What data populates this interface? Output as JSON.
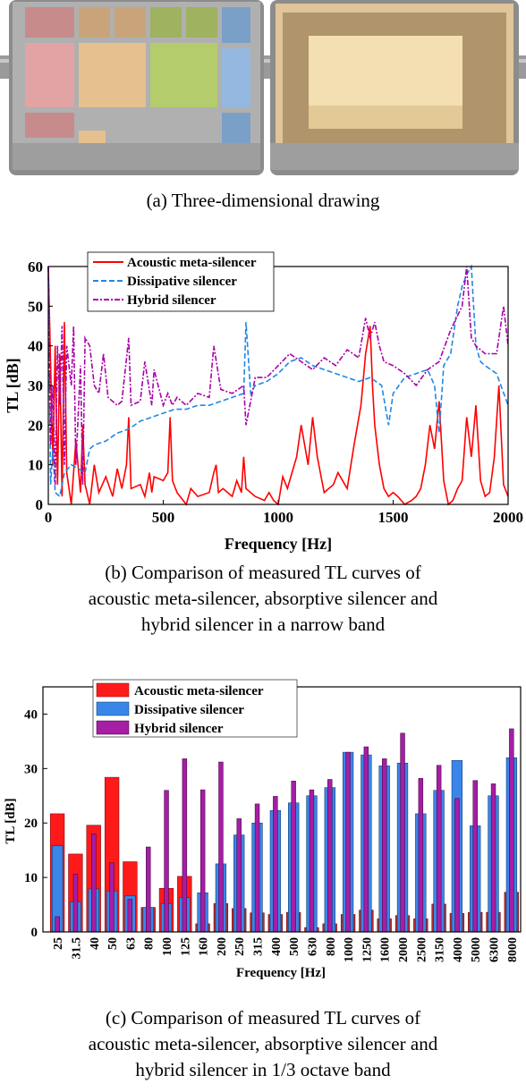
{
  "captions": {
    "a": "(a)  Three-dimensional  drawing",
    "b_lines": [
      "(b)  Comparison  of  measured  TL  curves  of",
      "acoustic  meta-silencer,  absorptive  silencer  and",
      "hybrid  silencer  in  a  narrow  band"
    ],
    "c_lines": [
      "(c)  Comparison  of  measured  TL  curves  of",
      "acoustic  meta-silencer,  absorptive  silencer  and",
      "hybrid  silencer  in  1/3  octave  band"
    ]
  },
  "colors": {
    "meta": "#ff0000",
    "dissipative": "#1e88e5",
    "hybrid": "#aa00aa",
    "bar_meta": "#ff1a1a",
    "bar_diss": "#3a86e8",
    "bar_hybrid": "#a51ea5",
    "bar_meta_low": "#b03030"
  },
  "chart_data": [
    {
      "type": "line",
      "xlabel": "Frequency [Hz]",
      "ylabel": "TL [dB]",
      "xlim": [
        0,
        2000
      ],
      "ylim": [
        0,
        60
      ],
      "xticks": [
        0,
        500,
        1000,
        1500,
        2000
      ],
      "yticks": [
        0,
        10,
        20,
        30,
        40,
        50,
        60
      ],
      "legend_position": "top-center",
      "series": [
        {
          "name": "Acoustic meta-silencer",
          "x": [
            0,
            10,
            20,
            30,
            40,
            50,
            60,
            70,
            80,
            100,
            120,
            140,
            150,
            160,
            180,
            200,
            220,
            250,
            280,
            300,
            320,
            340,
            350,
            360,
            400,
            420,
            440,
            450,
            460,
            500,
            520,
            530,
            540,
            560,
            600,
            620,
            650,
            700,
            720,
            730,
            740,
            760,
            800,
            820,
            840,
            850,
            860,
            900,
            940,
            960,
            980,
            1000,
            1020,
            1040,
            1060,
            1080,
            1100,
            1130,
            1150,
            1170,
            1190,
            1200,
            1240,
            1260,
            1300,
            1330,
            1360,
            1380,
            1400,
            1410,
            1420,
            1440,
            1460,
            1480,
            1500,
            1520,
            1550,
            1580,
            1600,
            1620,
            1640,
            1660,
            1680,
            1700,
            1720,
            1740,
            1760,
            1780,
            1800,
            1820,
            1840,
            1860,
            1880,
            1900,
            1920,
            1940,
            1960,
            1980,
            2000
          ],
          "y": [
            60,
            35,
            10,
            40,
            5,
            38,
            2,
            46,
            8,
            0,
            16,
            3,
            20,
            5,
            0,
            10,
            3,
            7,
            2,
            9,
            4,
            10,
            22,
            4,
            5,
            2,
            8,
            3,
            7,
            6,
            8,
            22,
            6,
            3,
            0,
            4,
            2,
            3,
            8,
            10,
            3,
            4,
            2,
            6,
            3,
            12,
            4,
            2,
            1,
            3,
            1,
            0,
            7,
            4,
            8,
            12,
            20,
            10,
            22,
            12,
            6,
            3,
            5,
            8,
            4,
            15,
            25,
            38,
            45,
            30,
            20,
            10,
            4,
            2,
            3,
            2,
            0,
            1,
            2,
            4,
            10,
            20,
            14,
            26,
            6,
            0,
            1,
            4,
            6,
            22,
            12,
            25,
            6,
            2,
            3,
            12,
            30,
            5,
            2
          ]
        },
        {
          "name": "Dissipative silencer",
          "x": [
            0,
            10,
            20,
            30,
            50,
            70,
            100,
            130,
            160,
            180,
            200,
            250,
            300,
            350,
            400,
            450,
            500,
            550,
            600,
            650,
            700,
            750,
            800,
            850,
            860,
            880,
            900,
            950,
            1000,
            1050,
            1100,
            1150,
            1200,
            1250,
            1300,
            1350,
            1400,
            1450,
            1480,
            1500,
            1550,
            1600,
            1650,
            1680,
            1700,
            1720,
            1750,
            1780,
            1800,
            1820,
            1840,
            1860,
            1880,
            1900,
            1950,
            2000
          ],
          "y": [
            60,
            5,
            14,
            3,
            2,
            8,
            10,
            9,
            8,
            14,
            15,
            16,
            18,
            19,
            21,
            22,
            23,
            24,
            24,
            25,
            25,
            26,
            27,
            28,
            46,
            28,
            30,
            31,
            33,
            36,
            37,
            35,
            34,
            33,
            32,
            31,
            32,
            30,
            20,
            28,
            32,
            33,
            34,
            30,
            18,
            35,
            38,
            50,
            55,
            58,
            62,
            40,
            36,
            35,
            33,
            25
          ]
        },
        {
          "name": "Hybrid silencer",
          "x": [
            0,
            10,
            20,
            30,
            40,
            50,
            60,
            70,
            80,
            100,
            110,
            120,
            140,
            150,
            160,
            180,
            200,
            220,
            240,
            260,
            300,
            320,
            350,
            360,
            400,
            420,
            450,
            460,
            500,
            520,
            540,
            560,
            600,
            650,
            700,
            720,
            750,
            800,
            850,
            860,
            900,
            950,
            1000,
            1050,
            1100,
            1150,
            1200,
            1250,
            1300,
            1350,
            1380,
            1400,
            1420,
            1440,
            1460,
            1500,
            1550,
            1600,
            1650,
            1700,
            1750,
            1800,
            1820,
            1840,
            1860,
            1900,
            1950,
            1980,
            2000
          ],
          "y": [
            60,
            15,
            30,
            5,
            40,
            25,
            45,
            10,
            40,
            30,
            45,
            10,
            35,
            5,
            42,
            40,
            30,
            28,
            38,
            27,
            25,
            26,
            42,
            25,
            26,
            36,
            25,
            34,
            25,
            28,
            25,
            27,
            25,
            28,
            27,
            40,
            29,
            28,
            30,
            20,
            32,
            32,
            35,
            38,
            36,
            34,
            37,
            35,
            39,
            37,
            47,
            42,
            46,
            40,
            36,
            35,
            33,
            30,
            34,
            36,
            44,
            50,
            60,
            42,
            40,
            38,
            38,
            50,
            40
          ]
        }
      ]
    },
    {
      "type": "bar",
      "xlabel": "Frequency [Hz]",
      "ylabel": "TL [dB]",
      "ylim": [
        0,
        45
      ],
      "yticks": [
        0,
        10,
        20,
        30,
        40
      ],
      "legend_position": "top-left",
      "categories": [
        "25",
        "31.5",
        "40",
        "50",
        "63",
        "80",
        "100",
        "125",
        "160",
        "200",
        "250",
        "315",
        "400",
        "500",
        "630",
        "800",
        "1000",
        "1250",
        "1600",
        "2000",
        "2500",
        "3150",
        "4000",
        "5000",
        "6300",
        "8000"
      ],
      "series": [
        {
          "name": "Acoustic meta-silencer",
          "values": [
            21.7,
            14.3,
            19.6,
            28.4,
            12.9,
            4.5,
            8.0,
            10.2,
            1.5,
            5.2,
            4.3,
            3.5,
            3.2,
            3.6,
            0.8,
            1.5,
            3.2,
            4.0,
            2.4,
            3.0,
            2.4,
            5.1,
            3.4,
            3.6,
            3.6,
            7.3
          ]
        },
        {
          "name": "Dissipative silencer",
          "values": [
            15.8,
            5.5,
            7.9,
            7.5,
            6.6,
            4.5,
            5.2,
            6.3,
            7.2,
            12.5,
            17.8,
            20.0,
            22.3,
            23.7,
            25.0,
            26.5,
            33.0,
            32.5,
            30.5,
            31.0,
            21.7,
            26.0,
            31.5,
            19.5,
            25.0,
            32.0
          ]
        },
        {
          "name": "Hybrid silencer",
          "values": [
            2.8,
            10.6,
            18.0,
            12.7,
            6.0,
            15.6,
            26.0,
            31.8,
            26.1,
            31.2,
            20.8,
            23.5,
            24.9,
            27.7,
            26.1,
            28.0,
            33.0,
            34.0,
            31.8,
            36.5,
            28.2,
            30.6,
            24.5,
            27.8,
            27.2,
            37.3
          ]
        }
      ]
    }
  ]
}
